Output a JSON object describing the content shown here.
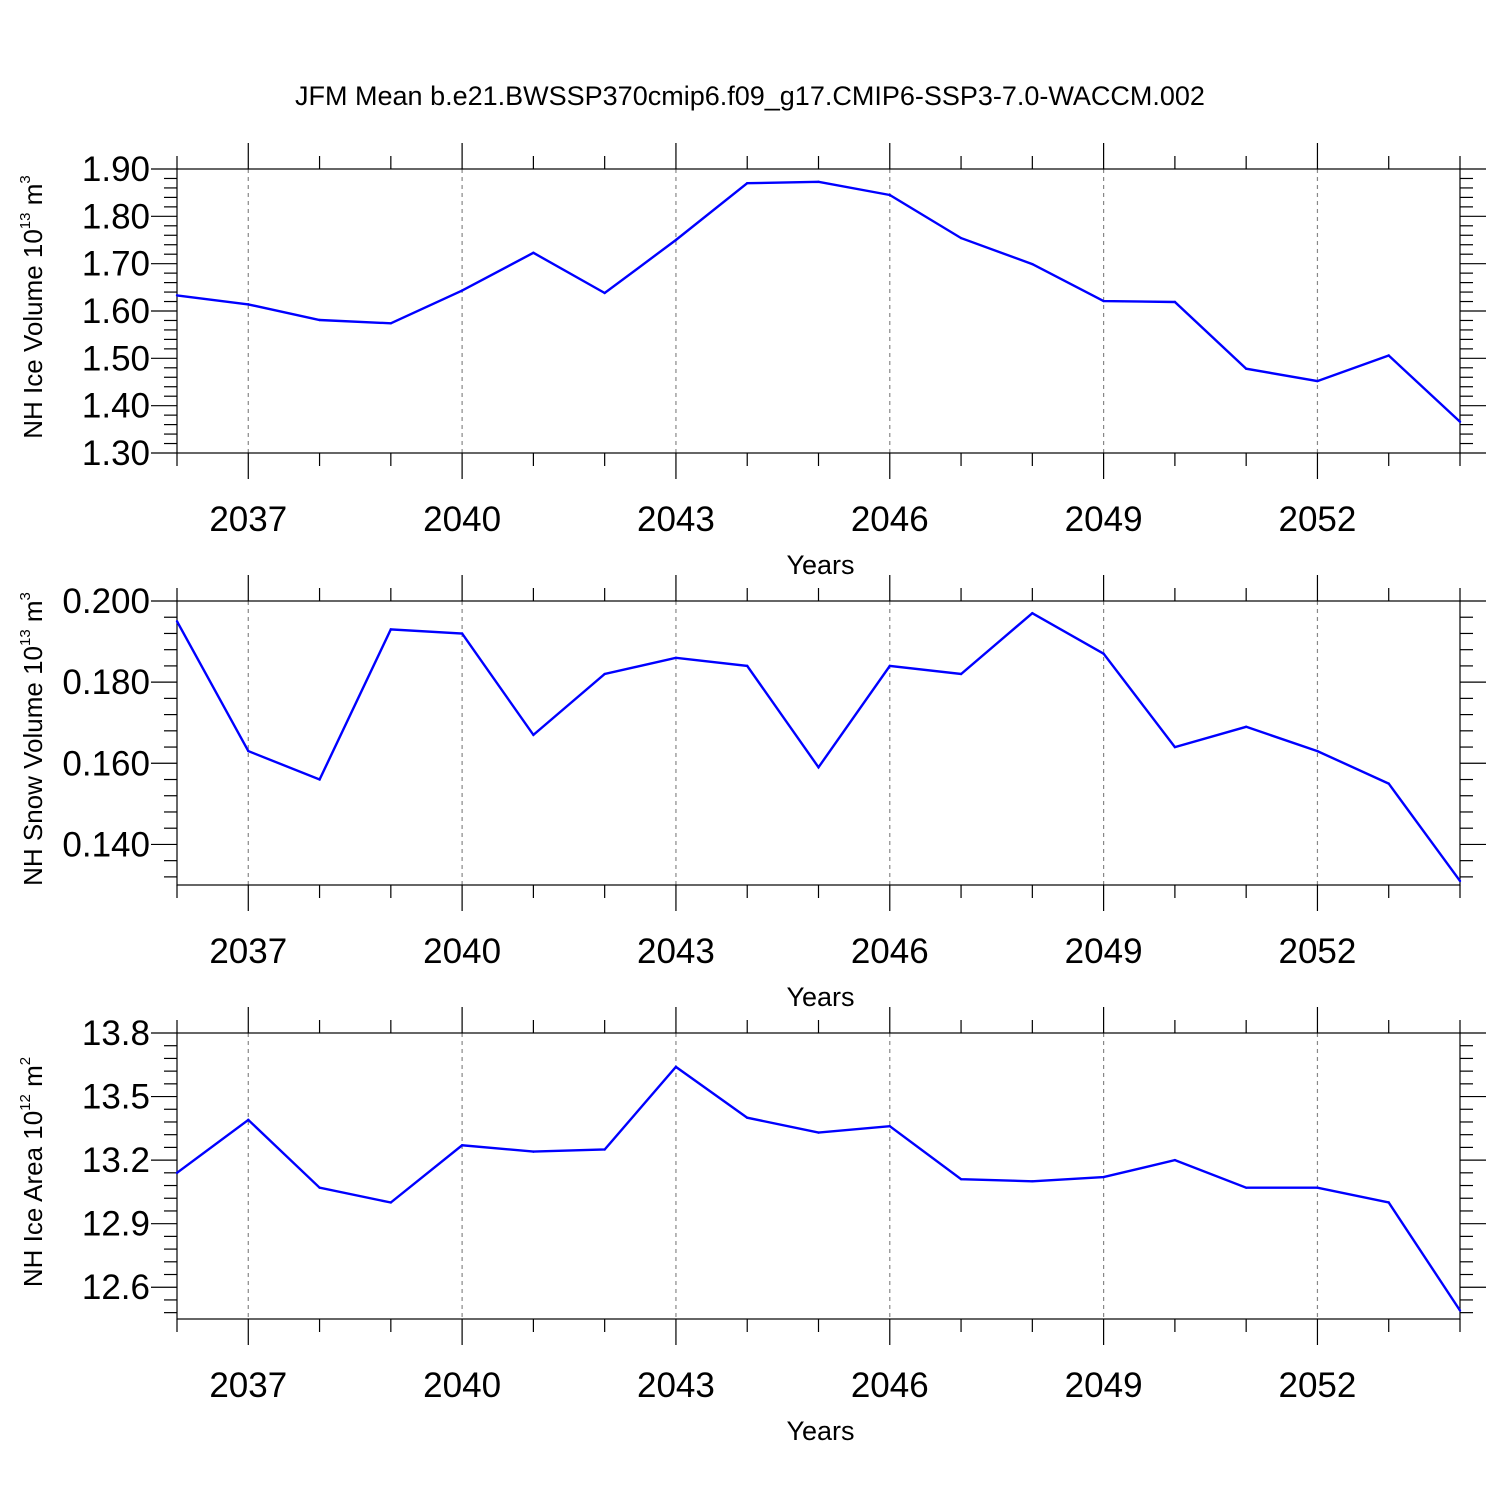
{
  "title": "JFM Mean b.e21.BWSSP370cmip6.f09_g17.CMIP6-SSP3-7.0-WACCM.002",
  "colors": {
    "line": "#0000ff",
    "grid": "#888888",
    "axes": "#000000"
  },
  "chart_data": [
    {
      "type": "line",
      "xlabel": "Years",
      "ylabel_parts": [
        "NH Ice Volume 10",
        "13",
        " m",
        "3"
      ],
      "x": [
        2036,
        2037,
        2038,
        2039,
        2040,
        2041,
        2042,
        2043,
        2044,
        2045,
        2046,
        2047,
        2048,
        2049,
        2050,
        2051,
        2052,
        2053,
        2054
      ],
      "y": [
        1.633,
        1.614,
        1.581,
        1.574,
        1.643,
        1.723,
        1.638,
        1.75,
        1.87,
        1.873,
        1.845,
        1.754,
        1.699,
        1.621,
        1.619,
        1.478,
        1.452,
        1.506,
        1.366
      ],
      "xlim": [
        2036,
        2054
      ],
      "ylim": [
        1.3,
        1.9
      ],
      "xticks": [
        2037,
        2040,
        2043,
        2046,
        2049,
        2052
      ],
      "xtick_labels": [
        "2037",
        "2040",
        "2043",
        "2046",
        "2049",
        "2052"
      ],
      "yticks": [
        1.3,
        1.4,
        1.5,
        1.6,
        1.7,
        1.8,
        1.9
      ],
      "ytick_labels": [
        "1.30",
        "1.40",
        "1.50",
        "1.60",
        "1.70",
        "1.80",
        "1.90"
      ],
      "y_minor_step": 0.02,
      "grid": "vertical dashed at major x ticks"
    },
    {
      "type": "line",
      "xlabel": "Years",
      "ylabel_parts": [
        "NH Snow Volume 10",
        "13",
        " m",
        "3"
      ],
      "x": [
        2036,
        2037,
        2038,
        2039,
        2040,
        2041,
        2042,
        2043,
        2044,
        2045,
        2046,
        2047,
        2048,
        2049,
        2050,
        2051,
        2052,
        2053,
        2054
      ],
      "y": [
        0.195,
        0.163,
        0.156,
        0.193,
        0.192,
        0.167,
        0.182,
        0.186,
        0.184,
        0.159,
        0.184,
        0.182,
        0.197,
        0.187,
        0.164,
        0.169,
        0.163,
        0.155,
        0.131
      ],
      "xlim": [
        2036,
        2054
      ],
      "ylim": [
        0.13,
        0.2
      ],
      "xticks": [
        2037,
        2040,
        2043,
        2046,
        2049,
        2052
      ],
      "xtick_labels": [
        "2037",
        "2040",
        "2043",
        "2046",
        "2049",
        "2052"
      ],
      "yticks": [
        0.14,
        0.16,
        0.18,
        0.2
      ],
      "ytick_labels": [
        "0.140",
        "0.160",
        "0.180",
        "0.200"
      ],
      "y_minor_step": 0.004,
      "grid": "vertical dashed at major x ticks"
    },
    {
      "type": "line",
      "xlabel": "Years",
      "ylabel_parts": [
        "NH Ice Area 10",
        "12",
        " m",
        "2"
      ],
      "x": [
        2036,
        2037,
        2038,
        2039,
        2040,
        2041,
        2042,
        2043,
        2044,
        2045,
        2046,
        2047,
        2048,
        2049,
        2050,
        2051,
        2052,
        2053,
        2054
      ],
      "y": [
        13.14,
        13.39,
        13.07,
        13.0,
        13.27,
        13.24,
        13.25,
        13.64,
        13.4,
        13.33,
        13.36,
        13.11,
        13.1,
        13.12,
        13.2,
        13.07,
        13.07,
        13.0,
        12.49
      ],
      "xlim": [
        2036,
        2054
      ],
      "ylim": [
        12.45,
        13.8
      ],
      "xticks": [
        2037,
        2040,
        2043,
        2046,
        2049,
        2052
      ],
      "xtick_labels": [
        "2037",
        "2040",
        "2043",
        "2046",
        "2049",
        "2052"
      ],
      "yticks": [
        12.6,
        12.9,
        13.2,
        13.5,
        13.8
      ],
      "ytick_labels": [
        "12.6",
        "12.9",
        "13.2",
        "13.5",
        "13.8"
      ],
      "y_minor_step": 0.06,
      "grid": "vertical dashed at major x ticks"
    }
  ]
}
